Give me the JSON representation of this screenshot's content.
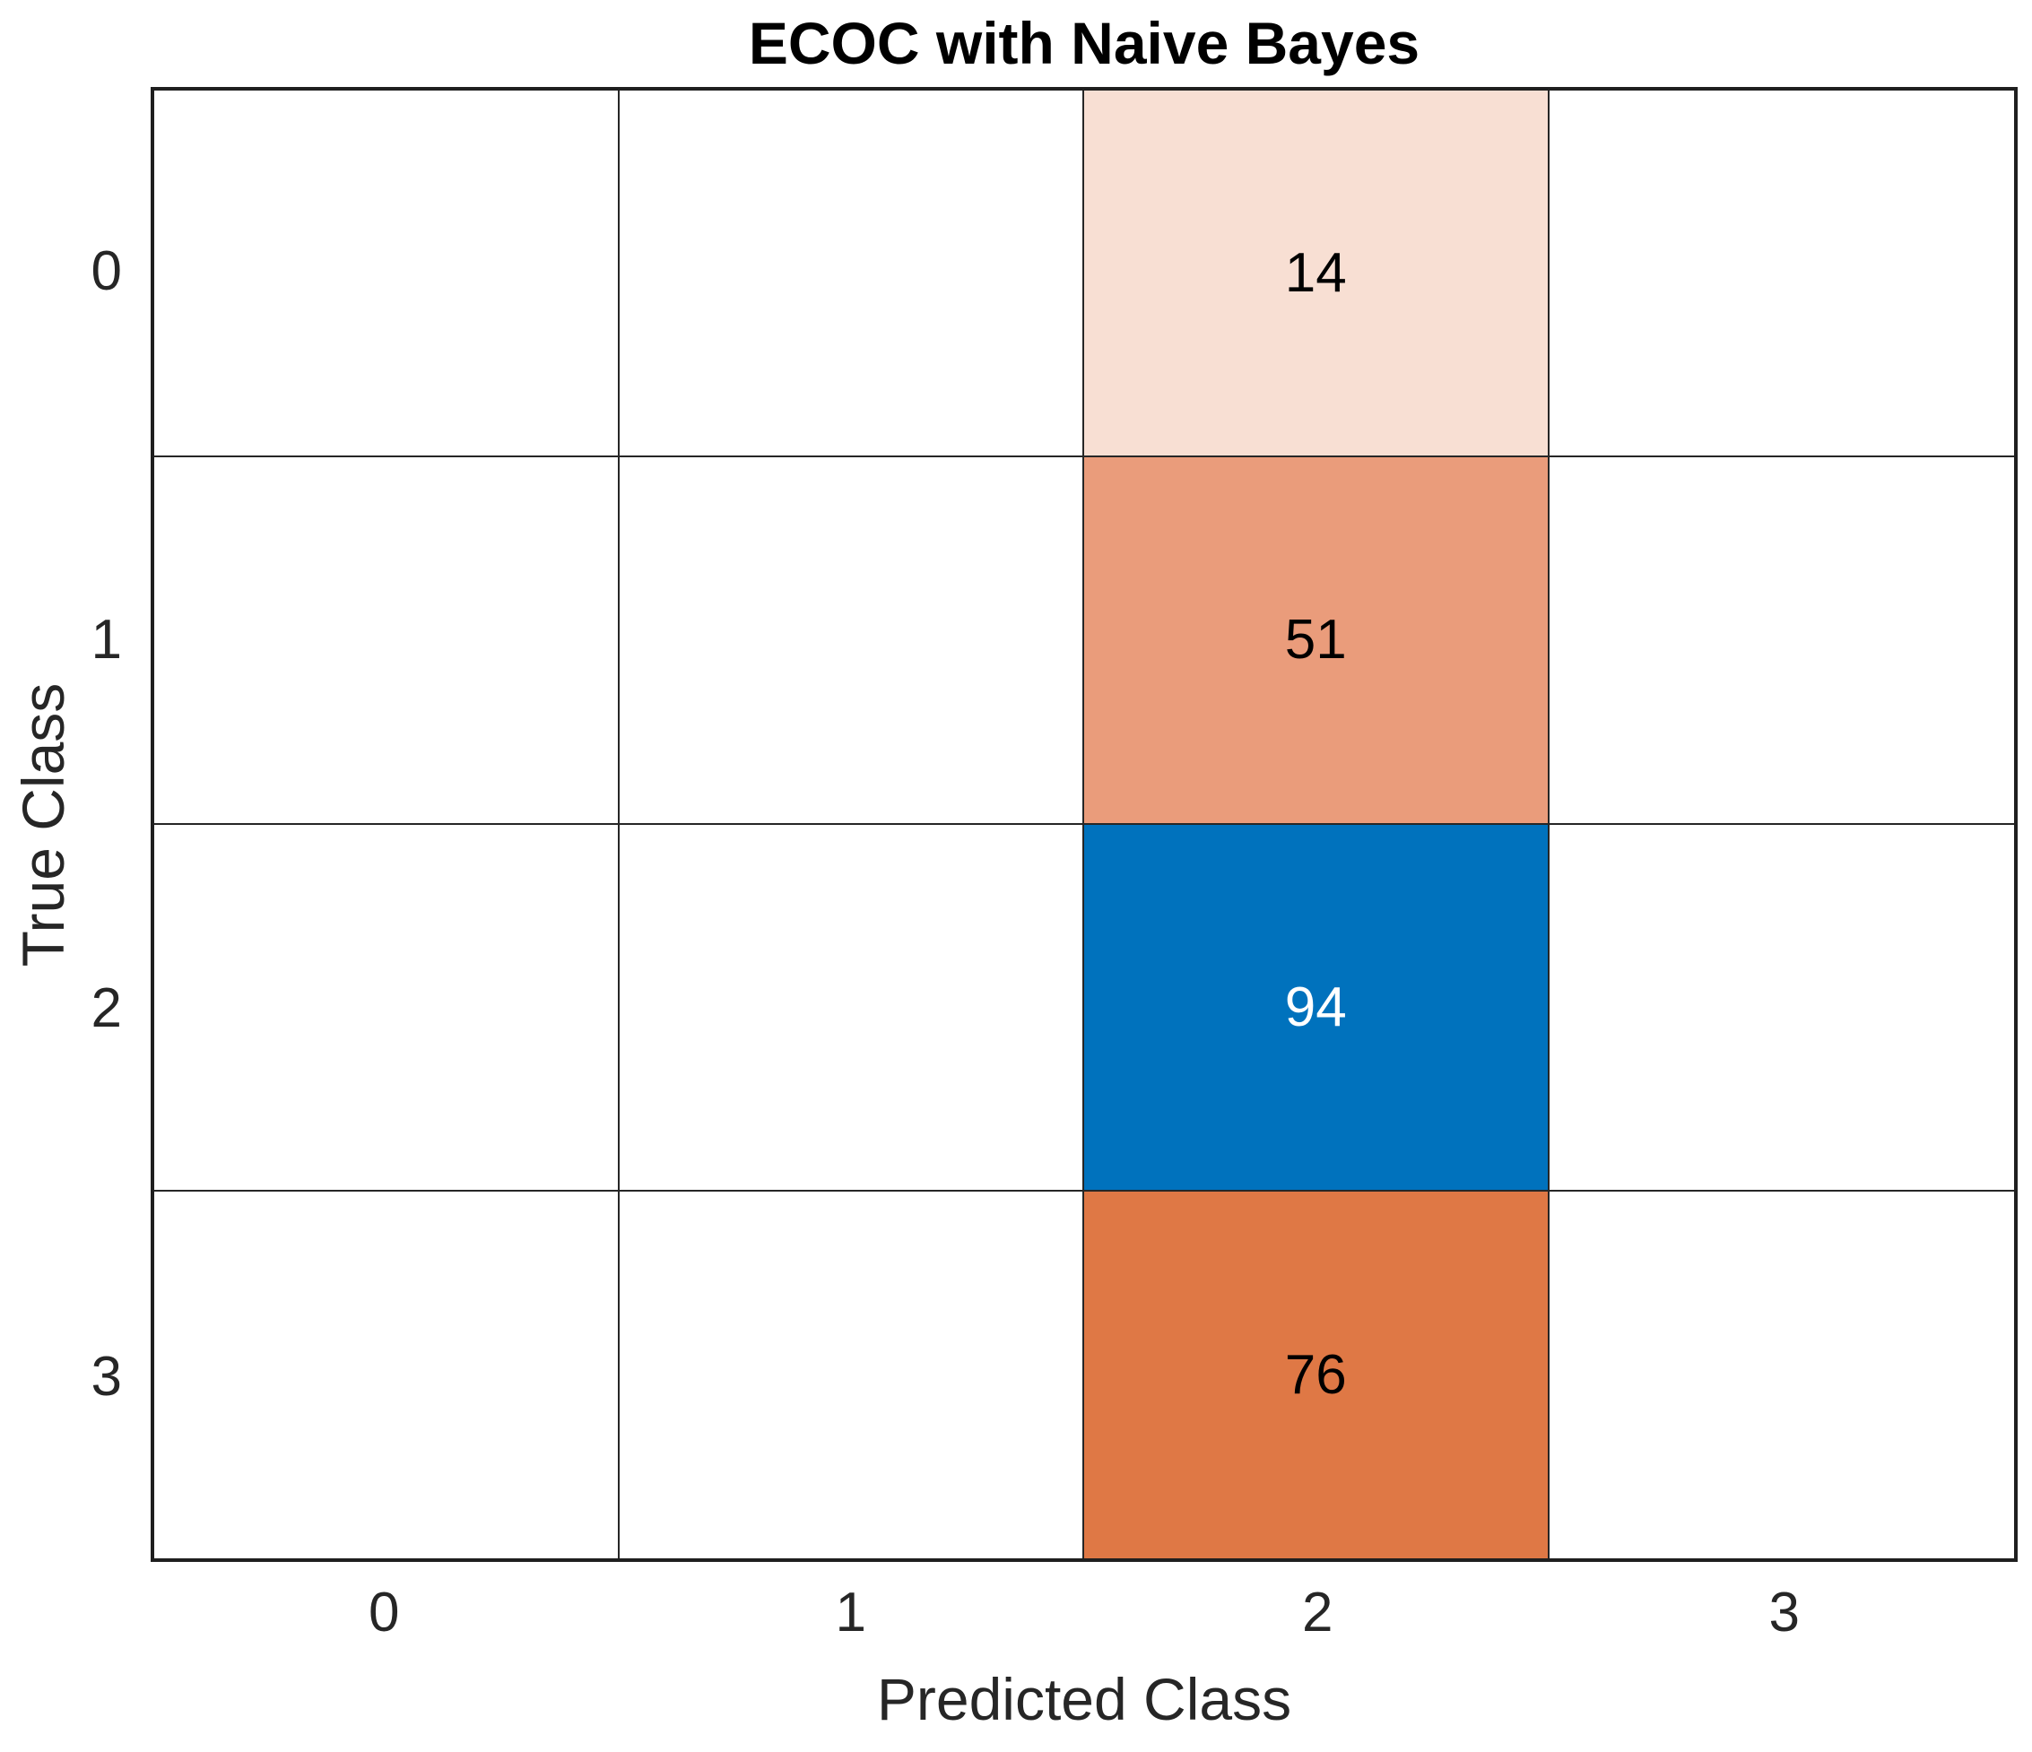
{
  "title": "ECOC with Naive Bayes",
  "chart_data": {
    "type": "heatmap",
    "subtype": "confusion-matrix",
    "title": "ECOC with Naive Bayes",
    "xlabel": "Predicted Class",
    "ylabel": "True Class",
    "x_tick_labels": [
      "0",
      "1",
      "2",
      "3"
    ],
    "y_tick_labels": [
      "0",
      "1",
      "2",
      "3"
    ],
    "rows": 4,
    "cols": 4,
    "matrix": [
      [
        null,
        null,
        14,
        null
      ],
      [
        null,
        null,
        51,
        null
      ],
      [
        null,
        null,
        94,
        null
      ],
      [
        null,
        null,
        76,
        null
      ]
    ],
    "cells": [
      {
        "row": 0,
        "col": 2,
        "value": "14",
        "bg": "#F8DFD3",
        "fg": "#000000"
      },
      {
        "row": 1,
        "col": 2,
        "value": "51",
        "bg": "#EA9C7B",
        "fg": "#000000"
      },
      {
        "row": 2,
        "col": 2,
        "value": "94",
        "bg": "#0072BD",
        "fg": "#FFFFFF"
      },
      {
        "row": 3,
        "col": 2,
        "value": "76",
        "bg": "#DF7845",
        "fg": "#000000"
      }
    ],
    "empty_cell_color": "#FFFFFF",
    "diagonal_color": "#0072BD",
    "off_diagonal_color": "#D95319",
    "grid_line_color": "#262626",
    "axes_border_color": "#1F1F1F",
    "grid": true,
    "legend": "none"
  }
}
